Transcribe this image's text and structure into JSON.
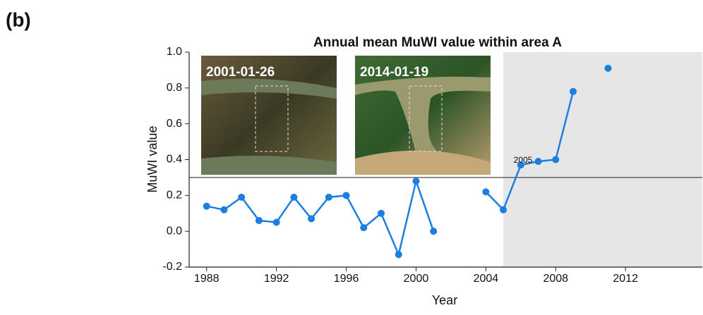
{
  "chart_data": {
    "type": "line",
    "panel_label": "(b)",
    "title": "Annual mean MuWI value within area A",
    "x_label": "Year",
    "y_label": "MuWI value",
    "x": [
      1988,
      1989,
      1990,
      1991,
      1992,
      1993,
      1994,
      1995,
      1996,
      1997,
      1998,
      1999,
      2000,
      2001,
      2002,
      2003,
      2004,
      2005,
      2006,
      2007,
      2008,
      2009,
      2010,
      2011
    ],
    "series": [
      {
        "color": "#1a7fe0",
        "values": [
          0.14,
          0.12,
          0.19,
          0.06,
          0.05,
          0.19,
          0.07,
          0.19,
          0.2,
          0.02,
          0.1,
          -0.13,
          0.28,
          0.0,
          null,
          null,
          0.22,
          0.12,
          0.37,
          0.39,
          0.4,
          0.78,
          null,
          0.91
        ]
      }
    ],
    "xlim": [
      1987,
      2016.4
    ],
    "xticks": [
      1988,
      1992,
      1996,
      2000,
      2004,
      2008,
      2012
    ],
    "ylim": [
      -0.2,
      1.0
    ],
    "yticks": [
      {
        "value": -0.2,
        "label": "-0.2"
      },
      {
        "value": 0,
        "label": "0.0"
      },
      0.2,
      0.4,
      0.6,
      0.8,
      {
        "value": 1,
        "label": "1.0"
      }
    ],
    "threshold": 0.3,
    "shade_from": 2005,
    "shade_color": "#e6e6e6",
    "annotation": "2005",
    "inset_labels": [
      "2001-01-26",
      "2014-01-19"
    ]
  }
}
